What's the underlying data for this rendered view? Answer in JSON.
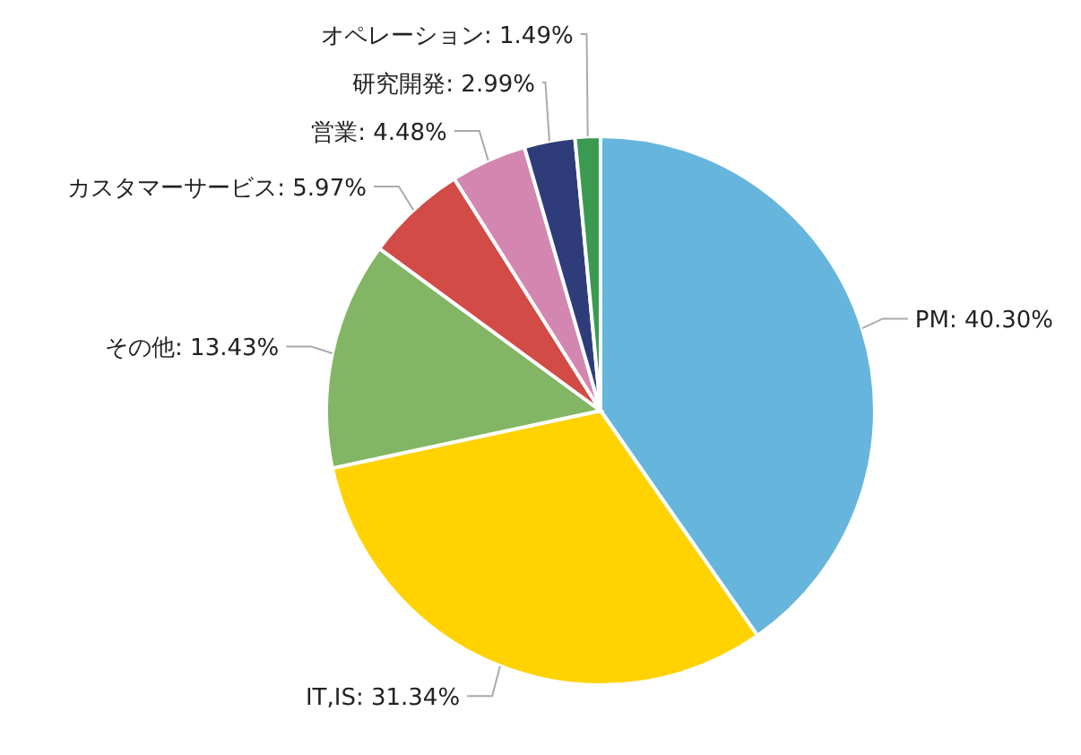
{
  "chart_data": {
    "type": "pie",
    "categories": [
      "PM",
      "IT,IS",
      "その他",
      "カスタマーサービス",
      "営業",
      "研究開発",
      "オペレーション"
    ],
    "values": [
      40.3,
      31.34,
      13.43,
      5.97,
      4.48,
      2.99,
      1.49
    ],
    "colors": [
      "#66b5dc",
      "#ffd200",
      "#82b665",
      "#d24b46",
      "#d387b0",
      "#2e3d7a",
      "#3a9a50"
    ],
    "value_labels": [
      "40.30%",
      "31.34%",
      "13.43%",
      "5.97%",
      "4.48%",
      "2.99%",
      "1.49%"
    ],
    "legend": false
  }
}
